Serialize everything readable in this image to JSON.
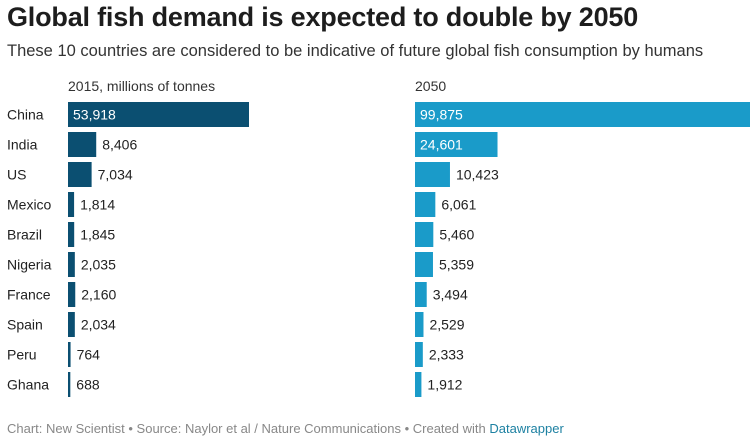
{
  "title": "Global fish demand is expected to double by 2050",
  "subtitle": "These 10 countries are considered to be indicative of future global fish consumption by humans",
  "footer": {
    "text": "Chart: New Scientist • Source: Naylor et al / Nature Communications • Created with",
    "link": "Datawrapper"
  },
  "colors": {
    "panel_2015": "#0b4f71",
    "panel_2050": "#1a9bc9",
    "label_inside": "#ffffff",
    "label_outside": "#222222"
  },
  "chart_data": {
    "type": "bar",
    "orientation": "horizontal",
    "categories": [
      "China",
      "India",
      "US",
      "Mexico",
      "Brazil",
      "Nigeria",
      "France",
      "Spain",
      "Peru",
      "Ghana"
    ],
    "series": [
      {
        "name": "2015, millions of tonnes",
        "values": [
          53918,
          8406,
          7034,
          1814,
          1845,
          2035,
          2160,
          2034,
          764,
          688
        ]
      },
      {
        "name": "2050",
        "values": [
          99875,
          24601,
          10423,
          6061,
          5460,
          5359,
          3494,
          2529,
          2333,
          1912
        ]
      }
    ],
    "value_format": "thousands-comma",
    "grid": false,
    "legend": "panel-titles"
  }
}
